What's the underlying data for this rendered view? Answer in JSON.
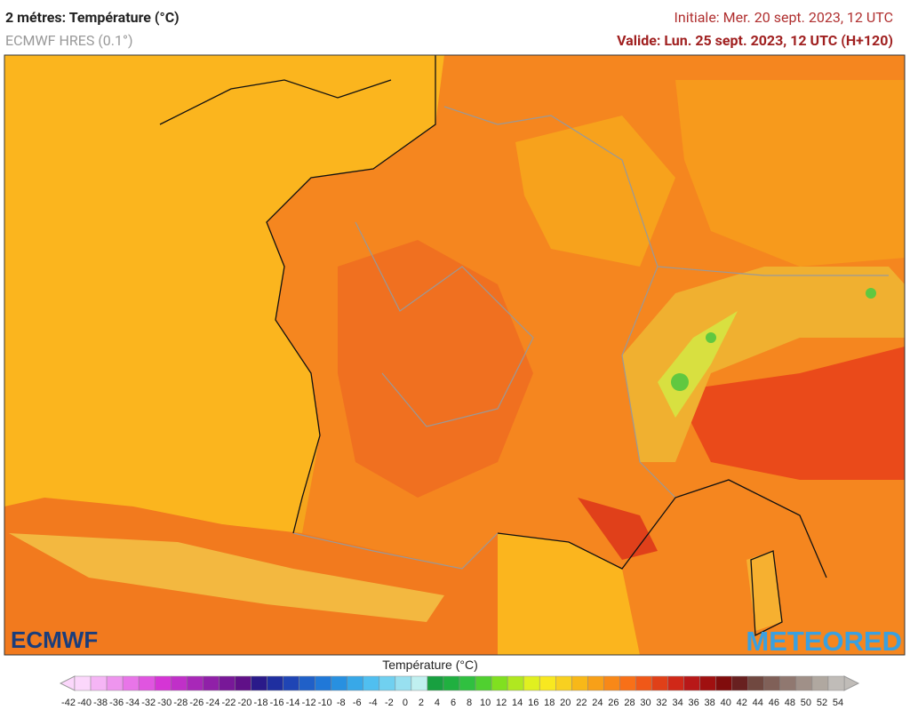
{
  "header": {
    "title": "2 métres: Température (°C)",
    "model": "ECMWF HRES (0.1°)",
    "initial": "Initiale: Mer. 20 sept. 2023, 12 UTC",
    "valid": "Valide: Lun. 25 sept. 2023, 12 UTC (H+120)"
  },
  "map": {
    "logo_left": "ECMWF",
    "logo_right": "METEORED"
  },
  "legend": {
    "title": "Température (°C)",
    "ticks": [
      -42,
      -40,
      -38,
      -36,
      -34,
      -32,
      -30,
      -28,
      -26,
      -24,
      -22,
      -20,
      -18,
      -16,
      -14,
      -12,
      -10,
      -8,
      -6,
      -4,
      -2,
      0,
      2,
      4,
      6,
      8,
      10,
      12,
      14,
      16,
      18,
      20,
      22,
      24,
      26,
      28,
      30,
      32,
      34,
      36,
      38,
      40,
      42,
      44,
      46,
      48,
      50,
      52,
      54
    ],
    "colors": [
      "#fbd7fb",
      "#f5b5f5",
      "#ee95ee",
      "#e875e8",
      "#e055e0",
      "#d535d5",
      "#c030c8",
      "#a828b8",
      "#9020a8",
      "#781898",
      "#601088",
      "#2a1a8a",
      "#1f2fa0",
      "#1f45b5",
      "#2060c8",
      "#2078d8",
      "#2890e0",
      "#38a8e8",
      "#50bff0",
      "#70d0f0",
      "#98e0f0",
      "#c0f0f0",
      "#18a040",
      "#20b040",
      "#30c040",
      "#50d030",
      "#80e020",
      "#b0e820",
      "#e0f020",
      "#f8e820",
      "#f8d020",
      "#f8b818",
      "#f8a018",
      "#f88818",
      "#f87018",
      "#f05818",
      "#e04018",
      "#d02818",
      "#b81818",
      "#a01010",
      "#800c0c",
      "#682020",
      "#704840",
      "#806058",
      "#907870",
      "#a09088",
      "#b0a8a0",
      "#c0bcb8"
    ]
  }
}
